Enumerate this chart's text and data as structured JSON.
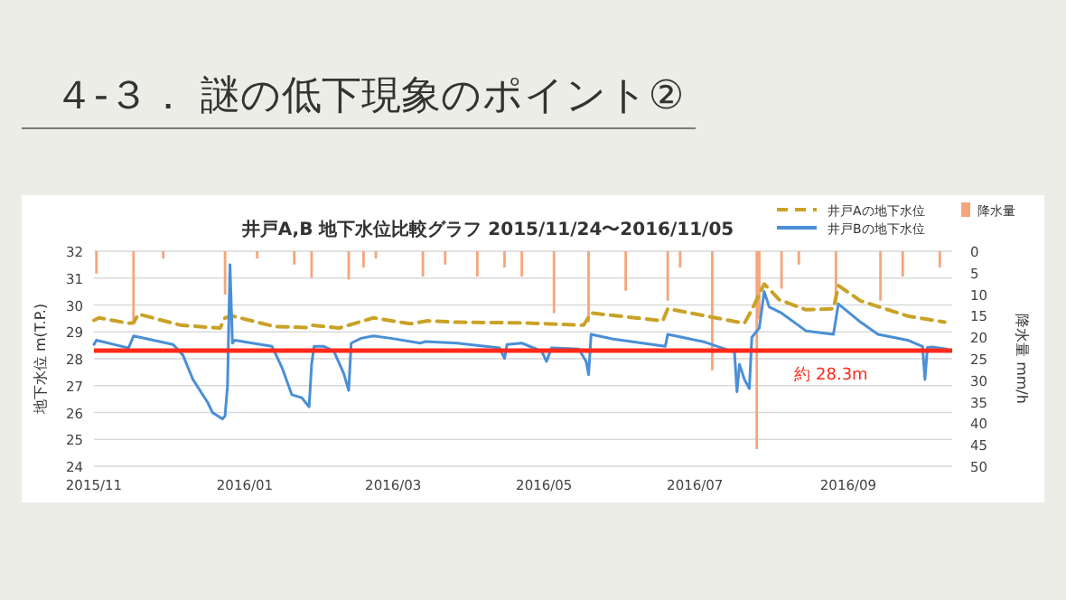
{
  "chart_data": {
    "type": "line",
    "title": "４-３． 謎の低下現象のポイント②",
    "subtitle": "井戸A,B 地下水位比較グラフ 2015/11/24〜2016/11/05",
    "ylabel": "地下水位 m(T.P.)",
    "y2label": "降水量 mm/h",
    "xlim": [
      "2015-11-01",
      "2016-10-13"
    ],
    "xticks": [
      {
        "value": "2015-11-01",
        "label": "2015/11"
      },
      {
        "value": "2016-01-01",
        "label": "2016/01"
      },
      {
        "value": "2016-03-01",
        "label": "2016/03"
      },
      {
        "value": "2016-05-01",
        "label": "2016/05"
      },
      {
        "value": "2016-07-01",
        "label": "2016/07"
      },
      {
        "value": "2016-09-01",
        "label": "2016/09"
      }
    ],
    "ylim": [
      24,
      32
    ],
    "yticks": [
      24,
      25,
      26,
      27,
      28,
      29,
      30,
      31,
      32
    ],
    "y2lim": [
      50,
      0
    ],
    "y2ticks": [
      0,
      5,
      10,
      15,
      20,
      25,
      30,
      35,
      40,
      45,
      50
    ],
    "grid": "y",
    "legend": "top right",
    "ref_lines": [
      {
        "axis": "y",
        "value": 28.3,
        "label": "約 28.3m",
        "color": "#ff2a1a"
      }
    ],
    "series": [
      {
        "name": "井戸Aの地下水位",
        "line_style": "dashed",
        "color": "#c9a227",
        "x": [
          "2015-11-01",
          "2015-11-03",
          "2015-11-15",
          "2015-11-17",
          "2015-11-19",
          "2015-12-06",
          "2015-12-22",
          "2015-12-24",
          "2015-12-27",
          "2016-01-13",
          "2016-01-26",
          "2016-01-28",
          "2016-02-08",
          "2016-02-22",
          "2016-03-08",
          "2016-03-15",
          "2016-03-27",
          "2016-04-15",
          "2016-04-23",
          "2016-05-17",
          "2016-05-20",
          "2016-06-18",
          "2016-06-20",
          "2016-07-21",
          "2016-07-24",
          "2016-07-29",
          "2016-08-01",
          "2016-08-04",
          "2016-08-15",
          "2016-08-26",
          "2016-08-28",
          "2016-09-06",
          "2016-09-25",
          "2016-10-10"
        ],
        "values": [
          29.43,
          29.52,
          29.32,
          29.34,
          29.66,
          29.25,
          29.14,
          29.52,
          29.59,
          29.2,
          29.16,
          29.25,
          29.14,
          29.52,
          29.3,
          29.41,
          29.36,
          29.34,
          29.33,
          29.25,
          29.7,
          29.41,
          29.86,
          29.32,
          29.82,
          30.78,
          30.5,
          30.2,
          29.82,
          29.86,
          30.72,
          30.15,
          29.59,
          29.36
        ]
      },
      {
        "name": "井戸Bの地下水位",
        "line_style": "solid",
        "color": "#4a8fd6",
        "x": [
          "2015-11-01",
          "2015-11-02",
          "2015-11-15",
          "2015-11-17",
          "2015-12-03",
          "2015-12-07",
          "2015-12-11",
          "2015-12-17",
          "2015-12-19",
          "2015-12-23",
          "2015-12-24",
          "2015-12-25",
          "2015-12-26",
          "2015-12-27",
          "2015-12-28",
          "2016-01-04",
          "2016-01-12",
          "2016-01-16",
          "2016-01-20",
          "2016-01-24",
          "2016-01-27",
          "2016-01-28",
          "2016-01-29",
          "2016-02-02",
          "2016-02-06",
          "2016-02-10",
          "2016-02-12",
          "2016-02-13",
          "2016-02-17",
          "2016-02-22",
          "2016-02-29",
          "2016-03-12",
          "2016-03-14",
          "2016-03-27",
          "2016-04-13",
          "2016-04-15",
          "2016-04-16",
          "2016-04-22",
          "2016-04-30",
          "2016-05-02",
          "2016-05-04",
          "2016-05-15",
          "2016-05-18",
          "2016-05-19",
          "2016-05-20",
          "2016-05-29",
          "2016-06-19",
          "2016-06-20",
          "2016-07-05",
          "2016-07-17",
          "2016-07-18",
          "2016-07-19",
          "2016-07-21",
          "2016-07-23",
          "2016-07-24",
          "2016-07-27",
          "2016-07-29",
          "2016-07-31",
          "2016-08-05",
          "2016-08-15",
          "2016-08-26",
          "2016-08-28",
          "2016-09-06",
          "2016-09-13",
          "2016-09-25",
          "2016-10-01",
          "2016-10-02",
          "2016-10-03",
          "2016-10-05",
          "2016-10-11"
        ],
        "values": [
          28.53,
          28.69,
          28.4,
          28.85,
          28.53,
          28.13,
          27.23,
          26.37,
          25.99,
          25.76,
          25.87,
          27.0,
          31.5,
          28.58,
          28.69,
          28.58,
          28.46,
          27.68,
          26.66,
          26.55,
          26.21,
          27.79,
          28.46,
          28.46,
          28.28,
          27.45,
          26.82,
          28.58,
          28.76,
          28.85,
          28.76,
          28.58,
          28.64,
          28.58,
          28.4,
          28.01,
          28.53,
          28.58,
          28.28,
          27.9,
          28.4,
          28.36,
          27.9,
          27.41,
          28.91,
          28.73,
          28.46,
          28.91,
          28.62,
          28.24,
          26.77,
          27.79,
          27.23,
          26.89,
          28.8,
          29.14,
          30.5,
          29.93,
          29.7,
          29.03,
          28.91,
          30.04,
          29.36,
          28.91,
          28.69,
          28.46,
          27.23,
          28.42,
          28.44,
          28.35
        ]
      },
      {
        "name": "降水量",
        "type": "bar",
        "axis": "y2",
        "color": "#f5a57a",
        "x": [
          "2015-11-02",
          "2015-11-17",
          "2015-11-29",
          "2015-12-24",
          "2016-01-06",
          "2016-01-21",
          "2016-01-28",
          "2016-02-12",
          "2016-02-18",
          "2016-02-23",
          "2016-03-13",
          "2016-03-22",
          "2016-04-04",
          "2016-04-15",
          "2016-04-22",
          "2016-05-05",
          "2016-05-19",
          "2016-06-03",
          "2016-06-20",
          "2016-06-25",
          "2016-07-08",
          "2016-07-26",
          "2016-07-27",
          "2016-08-05",
          "2016-08-12",
          "2016-08-27",
          "2016-09-14",
          "2016-09-23",
          "2016-10-08"
        ],
        "values": [
          5.2,
          16.5,
          1.7,
          10.1,
          1.7,
          3.1,
          6.2,
          6.6,
          3.8,
          1.7,
          5.9,
          3.1,
          5.9,
          3.8,
          5.9,
          14.4,
          16.5,
          9.2,
          11.5,
          3.8,
          27.7,
          46,
          15.8,
          8.7,
          3.1,
          12.3,
          11.5,
          5.9,
          3.8
        ]
      }
    ]
  }
}
